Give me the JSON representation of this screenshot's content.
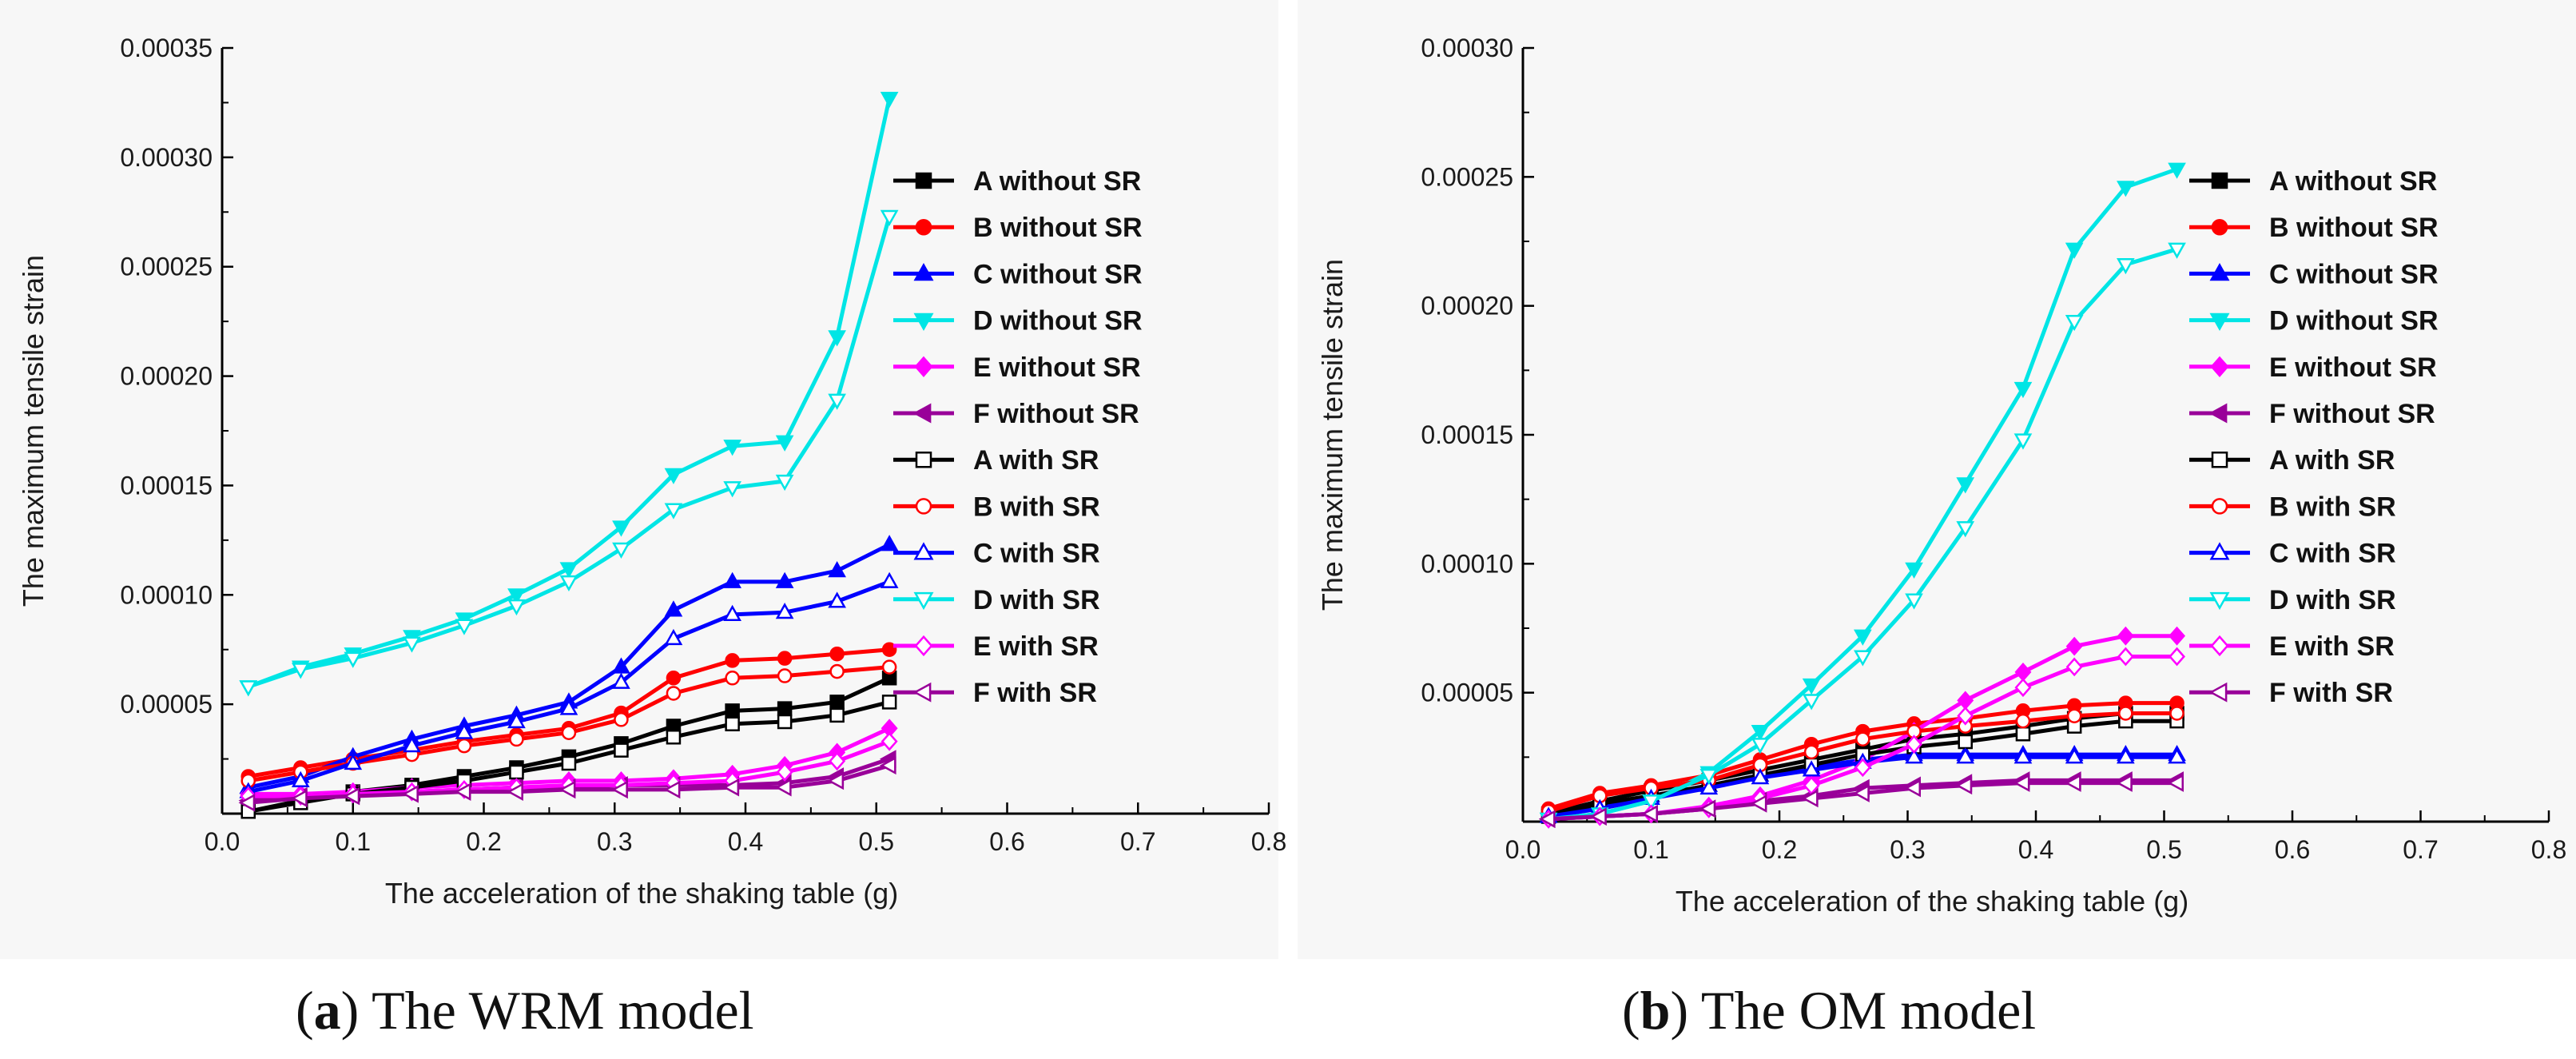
{
  "captions": [
    {
      "letter": "a",
      "text": " The WRM model"
    },
    {
      "letter": "b",
      "text": " The OM model"
    }
  ],
  "colors": {
    "A": "#000000",
    "B": "#ff0000",
    "C": "#0000ff",
    "D": "#00e5e5",
    "E": "#ff00ff",
    "F": "#990099"
  },
  "chart_data": [
    {
      "id": "wrm",
      "type": "line",
      "title": "",
      "xlabel": "The acceleration of the shaking table (g)",
      "ylabel": "The maximum tensile strain",
      "xlim": [
        0.0,
        0.8
      ],
      "ylim": [
        0,
        0.00035
      ],
      "xticks": [
        "0.0",
        "0.1",
        "0.2",
        "0.3",
        "0.4",
        "0.5",
        "0.6",
        "0.7",
        "0.8"
      ],
      "yticks": [
        "0.00005",
        "0.00010",
        "0.00015",
        "0.00020",
        "0.00025",
        "0.00030",
        "0.00035"
      ],
      "x": [
        0.02,
        0.06,
        0.1,
        0.145,
        0.185,
        0.225,
        0.265,
        0.305,
        0.345,
        0.39,
        0.43,
        0.47,
        0.51
      ],
      "series": [
        {
          "name": "A without SR",
          "group": "A",
          "filled": true,
          "marker": "square",
          "values": [
            1e-06,
            6e-06,
            1e-05,
            1.3e-05,
            1.7e-05,
            2.1e-05,
            2.6e-05,
            3.2e-05,
            4e-05,
            4.7e-05,
            4.8e-05,
            5.1e-05,
            6.2e-05
          ]
        },
        {
          "name": "B without SR",
          "group": "B",
          "filled": true,
          "marker": "circle",
          "values": [
            1.7e-05,
            2.1e-05,
            2.5e-05,
            2.9e-05,
            3.3e-05,
            3.6e-05,
            3.9e-05,
            4.6e-05,
            6.2e-05,
            7e-05,
            7.1e-05,
            7.3e-05,
            7.5e-05
          ]
        },
        {
          "name": "C without SR",
          "group": "C",
          "filled": true,
          "marker": "triangle",
          "values": [
            1.2e-05,
            1.7e-05,
            2.6e-05,
            3.4e-05,
            4e-05,
            4.5e-05,
            5.1e-05,
            6.7e-05,
            9.3e-05,
            0.000106,
            0.000106,
            0.000111,
            0.000123
          ]
        },
        {
          "name": "D without SR",
          "group": "D",
          "filled": true,
          "marker": "tridown",
          "values": [
            5.8e-05,
            6.7e-05,
            7.3e-05,
            8.1e-05,
            8.9e-05,
            0.0001,
            0.000112,
            0.000131,
            0.000155,
            0.000168,
            0.00017,
            0.000218,
            0.000327
          ]
        },
        {
          "name": "E without SR",
          "group": "E",
          "filled": true,
          "marker": "diamond",
          "values": [
            9e-06,
            9e-06,
            1e-05,
            1.2e-05,
            1.3e-05,
            1.4e-05,
            1.5e-05,
            1.5e-05,
            1.6e-05,
            1.8e-05,
            2.2e-05,
            2.8e-05,
            3.9e-05
          ]
        },
        {
          "name": "F without SR",
          "group": "F",
          "filled": true,
          "marker": "trileft",
          "values": [
            6e-06,
            8e-06,
            9e-06,
            1e-05,
            1.1e-05,
            1.2e-05,
            1.2e-05,
            1.3e-05,
            1.3e-05,
            1.3e-05,
            1.4e-05,
            1.7e-05,
            2.5e-05
          ]
        },
        {
          "name": "A with SR",
          "group": "A",
          "filled": false,
          "marker": "square",
          "values": [
            1e-06,
            5e-06,
            9e-06,
            1.2e-05,
            1.5e-05,
            1.9e-05,
            2.3e-05,
            2.9e-05,
            3.5e-05,
            4.1e-05,
            4.2e-05,
            4.5e-05,
            5.1e-05
          ]
        },
        {
          "name": "B with SR",
          "group": "B",
          "filled": false,
          "marker": "circle",
          "values": [
            1.5e-05,
            1.9e-05,
            2.3e-05,
            2.7e-05,
            3.1e-05,
            3.4e-05,
            3.7e-05,
            4.3e-05,
            5.5e-05,
            6.2e-05,
            6.3e-05,
            6.5e-05,
            6.7e-05
          ]
        },
        {
          "name": "C with SR",
          "group": "C",
          "filled": false,
          "marker": "triangle",
          "values": [
            1e-05,
            1.5e-05,
            2.3e-05,
            3.1e-05,
            3.7e-05,
            4.2e-05,
            4.8e-05,
            6e-05,
            8e-05,
            9.1e-05,
            9.2e-05,
            9.7e-05,
            0.000106
          ]
        },
        {
          "name": "D with SR",
          "group": "D",
          "filled": false,
          "marker": "tridown",
          "values": [
            5.8e-05,
            6.6e-05,
            7.1e-05,
            7.8e-05,
            8.6e-05,
            9.5e-05,
            0.000106,
            0.000121,
            0.000139,
            0.000149,
            0.000152,
            0.000189,
            0.000273
          ]
        },
        {
          "name": "E with SR",
          "group": "E",
          "filled": false,
          "marker": "diamond",
          "values": [
            8e-06,
            8e-06,
            9e-06,
            1e-05,
            1.1e-05,
            1.2e-05,
            1.3e-05,
            1.3e-05,
            1.4e-05,
            1.5e-05,
            1.9e-05,
            2.4e-05,
            3.3e-05
          ]
        },
        {
          "name": "F with SR",
          "group": "F",
          "filled": false,
          "marker": "trileft",
          "values": [
            5e-06,
            7e-06,
            8e-06,
            9e-06,
            1e-05,
            1e-05,
            1.1e-05,
            1.1e-05,
            1.1e-05,
            1.2e-05,
            1.2e-05,
            1.5e-05,
            2.2e-05
          ]
        }
      ]
    },
    {
      "id": "om",
      "type": "line",
      "title": "",
      "xlabel": "The acceleration of the shaking table (g)",
      "ylabel": "The maximum tensile strain",
      "xlim": [
        0.0,
        0.8
      ],
      "ylim": [
        0,
        0.0003
      ],
      "xticks": [
        "0.0",
        "0.1",
        "0.2",
        "0.3",
        "0.4",
        "0.5",
        "0.6",
        "0.7",
        "0.8"
      ],
      "yticks": [
        "0.00005",
        "0.00010",
        "0.00015",
        "0.00020",
        "0.00025",
        "0.00030"
      ],
      "x": [
        0.02,
        0.06,
        0.1,
        0.145,
        0.185,
        0.225,
        0.265,
        0.305,
        0.345,
        0.39,
        0.43,
        0.47,
        0.51
      ],
      "series": [
        {
          "name": "A without SR",
          "group": "A",
          "filled": true,
          "marker": "square",
          "values": [
            3e-06,
            8e-06,
            1.2e-05,
            1.6e-05,
            2e-05,
            2.4e-05,
            2.8e-05,
            3.2e-05,
            3.4e-05,
            3.7e-05,
            4e-05,
            4.2e-05,
            4.2e-05
          ]
        },
        {
          "name": "B without SR",
          "group": "B",
          "filled": true,
          "marker": "circle",
          "values": [
            5e-06,
            1.1e-05,
            1.4e-05,
            1.8e-05,
            2.4e-05,
            3e-05,
            3.5e-05,
            3.8e-05,
            4e-05,
            4.3e-05,
            4.5e-05,
            4.6e-05,
            4.6e-05
          ]
        },
        {
          "name": "C without SR",
          "group": "C",
          "filled": true,
          "marker": "triangle",
          "values": [
            2e-06,
            6e-06,
            1e-05,
            1.4e-05,
            1.8e-05,
            2.1e-05,
            2.4e-05,
            2.6e-05,
            2.6e-05,
            2.6e-05,
            2.6e-05,
            2.6e-05,
            2.6e-05
          ]
        },
        {
          "name": "D without SR",
          "group": "D",
          "filled": true,
          "marker": "tridown",
          "values": [
            1e-06,
            3e-06,
            8e-06,
            1.9e-05,
            3.5e-05,
            5.3e-05,
            7.2e-05,
            9.8e-05,
            0.000131,
            0.000168,
            0.000222,
            0.000246,
            0.000253
          ]
        },
        {
          "name": "E without SR",
          "group": "E",
          "filled": true,
          "marker": "diamond",
          "values": [
            1e-06,
            2e-06,
            3e-06,
            6e-06,
            1e-05,
            1.6e-05,
            2.4e-05,
            3.5e-05,
            4.7e-05,
            5.8e-05,
            6.8e-05,
            7.2e-05,
            7.2e-05
          ]
        },
        {
          "name": "F without SR",
          "group": "F",
          "filled": true,
          "marker": "trileft",
          "values": [
            1e-06,
            2e-06,
            3e-06,
            5e-06,
            8e-06,
            1e-05,
            1.3e-05,
            1.4e-05,
            1.5e-05,
            1.6e-05,
            1.6e-05,
            1.6e-05,
            1.6e-05
          ]
        },
        {
          "name": "A with SR",
          "group": "A",
          "filled": false,
          "marker": "square",
          "values": [
            2e-06,
            7e-06,
            1e-05,
            1.4e-05,
            1.8e-05,
            2.2e-05,
            2.6e-05,
            2.9e-05,
            3.1e-05,
            3.4e-05,
            3.7e-05,
            3.9e-05,
            3.9e-05
          ]
        },
        {
          "name": "B with SR",
          "group": "B",
          "filled": false,
          "marker": "circle",
          "values": [
            4e-06,
            1e-05,
            1.3e-05,
            1.6e-05,
            2.2e-05,
            2.7e-05,
            3.2e-05,
            3.5e-05,
            3.7e-05,
            3.9e-05,
            4.1e-05,
            4.2e-05,
            4.2e-05
          ]
        },
        {
          "name": "C with SR",
          "group": "C",
          "filled": false,
          "marker": "triangle",
          "values": [
            2e-06,
            5e-06,
            9e-06,
            1.3e-05,
            1.7e-05,
            2e-05,
            2.3e-05,
            2.5e-05,
            2.5e-05,
            2.5e-05,
            2.5e-05,
            2.5e-05,
            2.5e-05
          ]
        },
        {
          "name": "D with SR",
          "group": "D",
          "filled": false,
          "marker": "tridown",
          "values": [
            1e-06,
            3e-06,
            8e-06,
            1.8e-05,
            3e-05,
            4.7e-05,
            6.4e-05,
            8.6e-05,
            0.000114,
            0.000148,
            0.000194,
            0.000216,
            0.000222
          ]
        },
        {
          "name": "E with SR",
          "group": "E",
          "filled": false,
          "marker": "diamond",
          "values": [
            1e-06,
            2e-06,
            3e-06,
            5e-06,
            9e-06,
            1.4e-05,
            2.1e-05,
            3e-05,
            4.1e-05,
            5.2e-05,
            6e-05,
            6.4e-05,
            6.4e-05
          ]
        },
        {
          "name": "F with SR",
          "group": "F",
          "filled": false,
          "marker": "trileft",
          "values": [
            1e-06,
            2e-06,
            3e-06,
            5e-06,
            7e-06,
            9e-06,
            1.1e-05,
            1.3e-05,
            1.4e-05,
            1.5e-05,
            1.5e-05,
            1.5e-05,
            1.5e-05
          ]
        }
      ]
    }
  ]
}
